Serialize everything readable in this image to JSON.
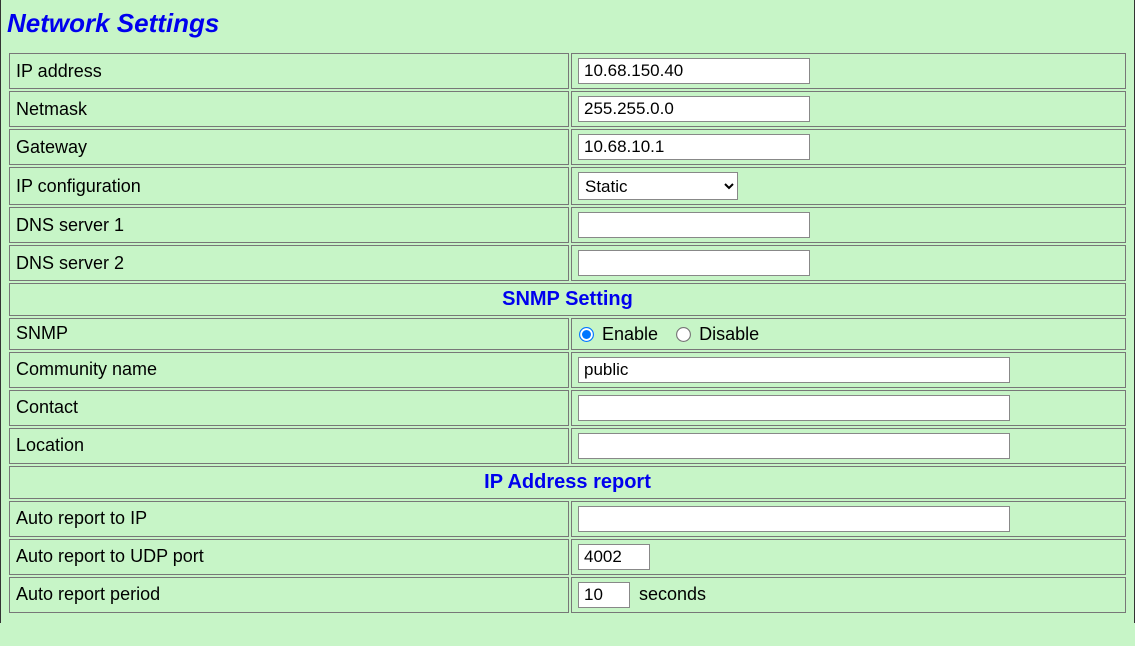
{
  "page_title": "Network Settings",
  "rows": {
    "ip_address": {
      "label": "IP address",
      "value": "10.68.150.40"
    },
    "netmask": {
      "label": "Netmask",
      "value": "255.255.0.0"
    },
    "gateway": {
      "label": "Gateway",
      "value": "10.68.10.1"
    },
    "ip_config": {
      "label": "IP configuration",
      "selected": "Static"
    },
    "dns1": {
      "label": "DNS server 1",
      "value": ""
    },
    "dns2": {
      "label": "DNS server 2",
      "value": ""
    }
  },
  "snmp_section": {
    "heading": "SNMP Setting",
    "snmp": {
      "label": "SNMP",
      "enable_label": "Enable",
      "disable_label": "Disable",
      "value": "enable"
    },
    "community": {
      "label": "Community name",
      "value": "public"
    },
    "contact": {
      "label": "Contact",
      "value": ""
    },
    "location": {
      "label": "Location",
      "value": ""
    }
  },
  "report_section": {
    "heading": "IP Address report",
    "report_ip": {
      "label": "Auto report to IP",
      "value": ""
    },
    "report_port": {
      "label": "Auto report to UDP port",
      "value": "4002"
    },
    "report_period": {
      "label": "Auto report period",
      "value": "10",
      "suffix": "seconds"
    }
  },
  "colors": {
    "background": "#c7f5c7",
    "heading_text": "#0000EE",
    "border": "#777777",
    "input_bg": "#ffffff"
  }
}
